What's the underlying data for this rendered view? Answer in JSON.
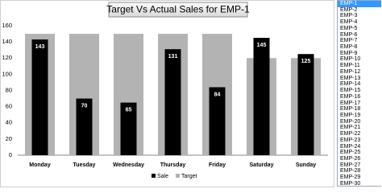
{
  "chart_data": {
    "type": "bar",
    "title": "Target Vs Actual Sales for EMP-1",
    "categories": [
      "Monday",
      "Tuesday",
      "Wednesday",
      "Thursday",
      "Friday",
      "Saturday",
      "Sunday"
    ],
    "series": [
      {
        "name": "Sale",
        "color": "#000000",
        "values": [
          143,
          70,
          65,
          131,
          84,
          145,
          125
        ]
      },
      {
        "name": "Target",
        "color": "#b3b3b3",
        "values": [
          150,
          150,
          150,
          150,
          150,
          120,
          120
        ]
      }
    ],
    "ylim": [
      0,
      160
    ],
    "yticks": [
      0,
      20,
      40,
      60,
      80,
      100,
      120,
      140,
      160
    ],
    "grid": false,
    "legend": "bottom"
  },
  "listbox": {
    "items": [
      "EMP-1",
      "EMP-2",
      "EMP-3",
      "EMP-4",
      "EMP-5",
      "EMP-6",
      "EMP-7",
      "EMP-8",
      "EMP-9",
      "EMP-10",
      "EMP-11",
      "EMP-12",
      "EMP-13",
      "EMP-14",
      "EMP-15",
      "EMP-16",
      "EMP-17",
      "EMP-18",
      "EMP-19",
      "EMP-20",
      "EMP-21",
      "EMP-22",
      "EMP-23",
      "EMP-24",
      "EMP-25",
      "EMP-26",
      "EMP-27",
      "EMP-28",
      "EMP-29",
      "EMP-30"
    ],
    "selected": 0
  }
}
